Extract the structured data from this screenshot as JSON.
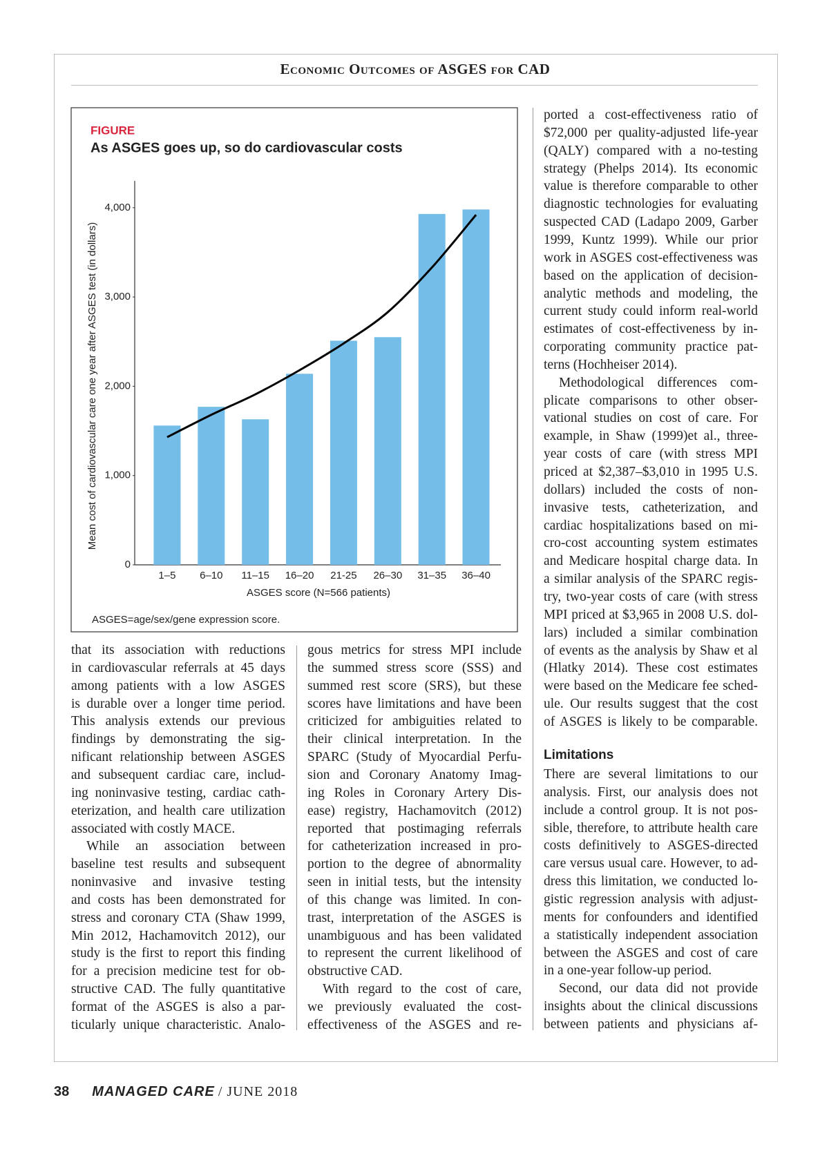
{
  "header": {
    "title": "Economic Outcomes of ASGES for CAD"
  },
  "chart_data": {
    "type": "bar",
    "label": "FIGURE",
    "title": "As ASGES goes up, so do cardiovascular costs",
    "categories": [
      "1–5",
      "6–10",
      "11–15",
      "16–20",
      "21-25",
      "26–30",
      "31–35",
      "36–40"
    ],
    "values": [
      1560,
      1770,
      1630,
      2140,
      2510,
      2550,
      3930,
      3980
    ],
    "color": "#74bde8",
    "trend": {
      "values": [
        1430,
        1680,
        1910,
        2180,
        2480,
        2830,
        3330,
        3920
      ],
      "color": "#000000"
    },
    "x_label": "ASGES score (N=566 patients)",
    "y_label": "Mean cost of cardiovascular care one year after ASGES test (in dollars)",
    "ylim": [
      0,
      4300
    ],
    "yticks": [
      0,
      {
        "value": 1000,
        "label": "1,000"
      },
      {
        "value": 2000,
        "label": "2,000"
      },
      {
        "value": 3000,
        "label": "3,000"
      },
      {
        "value": 4000,
        "label": "4,000"
      }
    ],
    "note": "ASGES=age/sex/gene expression score."
  },
  "body": {
    "col1": [
      [
        "that its association with reductions",
        "in cardiovascular referrals at 45 days",
        "among patients with a low ASGES",
        "is durable over a longer time period.",
        "This analysis extends our previous",
        "findings by demonstrating the sig-",
        "nificant relationship between ASGES",
        "and subsequent cardiac care, includ-",
        "ing noninvasive testing, cardiac cath-",
        "eterization, and health care utilization",
        "associated with costly MACE."
      ],
      [
        "While an association between",
        "baseline test results and subsequent",
        "noninvasive and invasive testing",
        "and costs has been demonstrated for",
        "stress and coronary CTA (Shaw 1999,",
        "Min 2012, Hachamovitch 2012), our",
        "study is the first to report this finding",
        "for a precision medicine test for ob-",
        "structive CAD. The fully quantitative",
        "format of the ASGES is also a par-",
        "ticularly unique characteristic. Analo-"
      ]
    ],
    "col2": [
      [
        "gous metrics for stress MPI include",
        "the summed stress score (SSS) and",
        "summed rest score (SRS), but these",
        "scores have limitations and have been",
        "criticized for ambiguities related to",
        "their clinical interpretation. In the",
        "SPARC (Study of Myocardial Perfu-",
        "sion and Coronary Anatomy Imag-",
        "ing Roles in Coronary Artery Dis-",
        "ease) registry, Hachamovitch (2012)",
        "reported that postimaging referrals",
        "for catheterization increased in pro-",
        "portion to the degree of abnormality",
        "seen in initial tests, but the intensity",
        "of this change was limited. In con-",
        "trast, interpretation of the ASGES is",
        "unambiguous and has been validated",
        "to represent the current likelihood of",
        "obstructive CAD."
      ],
      [
        "With regard to the cost of care,",
        "we previously evaluated the cost-",
        "effectiveness of the ASGES and re-"
      ]
    ],
    "col3a": [
      [
        "ported a cost-effectiveness ratio of",
        "$72,000 per quality-adjusted life-year",
        "(QALY) compared with a no-testing",
        "strategy (Phelps 2014). Its economic",
        "value is therefore comparable to other",
        "diagnostic technologies for evaluating",
        "suspected CAD (Ladapo 2009, Garber",
        "1999, Kuntz 1999). While our prior",
        "work in ASGES cost-effectiveness was",
        "based on the application of decision-",
        "analytic methods and modeling, the",
        "current study could inform real-world",
        "estimates of cost-effectiveness by in-",
        "corporating community practice pat-",
        "terns (Hochheiser 2014)."
      ],
      [
        "Methodological differences com-",
        "plicate comparisons to other obser-",
        "vational studies on cost of care. For",
        "example, in Shaw (1999)et al., three-",
        "year costs of care (with stress MPI",
        "priced at $2,387–$3,010 in 1995 U.S.",
        "dollars) included the costs of non-",
        "invasive tests, catheterization, and",
        "cardiac hospitalizations based on mi-",
        "cro-cost accounting system estimates",
        "and Medicare hospital charge data. In",
        "a similar analysis of the SPARC regis-",
        "try, two-year costs of care (with stress",
        "MPI priced at $3,965 in 2008 U.S. dol-",
        "lars) included a similar combination",
        "of events as the analysis by Shaw et al",
        "(Hlatky 2014). These cost estimates",
        "were based on the Medicare fee sched-",
        "ule. Our results suggest that the cost",
        "of ASGES is likely to be comparable."
      ]
    ],
    "limitations_heading": "Limitations",
    "col3b": [
      [
        "There are several limitations to our",
        "analysis. First, our analysis does not",
        "include a control group. It is not pos-",
        "sible, therefore, to attribute health care",
        "costs definitively to ASGES-directed",
        "care versus usual care. However, to ad-",
        "dress this limitation, we conducted lo-",
        "gistic regression analysis with adjust-",
        "ments for confounders and identified",
        "a statistically independent association",
        "between the ASGES and cost of care",
        "in a one-year follow-up period."
      ],
      [
        "Second, our data did not provide",
        "insights about the clinical discussions",
        "between patients and physicians af-"
      ]
    ]
  },
  "footer": {
    "page": "38",
    "journal": "MANAGED CARE",
    "date": "/ JUNE 2018"
  }
}
